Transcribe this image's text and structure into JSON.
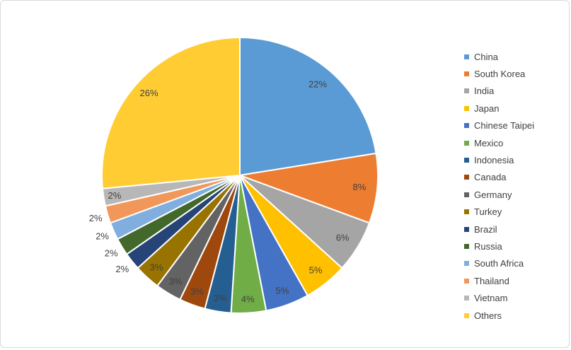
{
  "frame": {
    "background": "#FFFFFF",
    "border_color": "#D9D9D9"
  },
  "chart_data": {
    "type": "pie",
    "title": "",
    "legend_position": "right",
    "start_angle": "12-oclock, clockwise",
    "label_text_color": "#404040",
    "separator_color": "#FFFFFF",
    "categories": [
      "China",
      "South Korea",
      "India",
      "Japan",
      "Chinese Taipei",
      "Mexico",
      "Indonesia",
      "Canada",
      "Germany",
      "Turkey",
      "Brazil",
      "Russia",
      "South Africa",
      "Thailand",
      "Vietnam",
      "Others"
    ],
    "slices": [
      {
        "label": "China",
        "value_pct": 22,
        "data_label": "22%",
        "color": "#5B9BD5",
        "label_placement": "inside",
        "label_radius": 0.87
      },
      {
        "label": "South Korea",
        "value_pct": 8,
        "data_label": "8%",
        "color": "#ED7D31",
        "label_placement": "inside",
        "label_radius": 0.87
      },
      {
        "label": "India",
        "value_pct": 6,
        "data_label": "6%",
        "color": "#A5A5A5",
        "label_placement": "inside",
        "label_radius": 0.87
      },
      {
        "label": "Japan",
        "value_pct": 5,
        "data_label": "5%",
        "color": "#FFC000",
        "label_placement": "inside",
        "label_radius": 0.88
      },
      {
        "label": "Chinese Taipei",
        "value_pct": 5,
        "data_label": "5%",
        "color": "#4472C4",
        "label_placement": "inside",
        "label_radius": 0.89
      },
      {
        "label": "Mexico",
        "value_pct": 4,
        "data_label": "4%",
        "color": "#70AD47",
        "label_placement": "inside",
        "label_radius": 0.9
      },
      {
        "label": "Indonesia",
        "value_pct": 3,
        "data_label": "3%",
        "color": "#255E91",
        "label_placement": "inside",
        "label_radius": 0.9
      },
      {
        "label": "Canada",
        "value_pct": 3,
        "data_label": "3%",
        "color": "#9E480E",
        "label_placement": "inside",
        "label_radius": 0.9
      },
      {
        "label": "Germany",
        "value_pct": 3,
        "data_label": "3%",
        "color": "#636363",
        "label_placement": "inside",
        "label_radius": 0.9
      },
      {
        "label": "Turkey",
        "value_pct": 3,
        "data_label": "3%",
        "color": "#997300",
        "label_placement": "inside",
        "label_radius": 0.9
      },
      {
        "label": "Brazil",
        "value_pct": 2,
        "data_label": "2%",
        "color": "#264478",
        "label_placement": "outside",
        "label_radius": 1.09
      },
      {
        "label": "Russia",
        "value_pct": 2,
        "data_label": "2%",
        "color": "#43682B",
        "label_placement": "outside",
        "label_radius": 1.09
      },
      {
        "label": "South Africa",
        "value_pct": 2,
        "data_label": "2%",
        "color": "#7FAEDF",
        "label_placement": "outside",
        "label_radius": 1.09
      },
      {
        "label": "Thailand",
        "value_pct": 2,
        "data_label": "2%",
        "color": "#F1975A",
        "label_placement": "outside",
        "label_radius": 1.09
      },
      {
        "label": "Vietnam",
        "value_pct": 2,
        "data_label": "2%",
        "color": "#B7B7B7",
        "label_placement": "inside",
        "label_radius": 0.92
      },
      {
        "label": "Others",
        "value_pct": 26,
        "data_label": "26%",
        "color": "#FFCD33",
        "label_placement": "inside",
        "label_radius": 0.89
      }
    ]
  }
}
